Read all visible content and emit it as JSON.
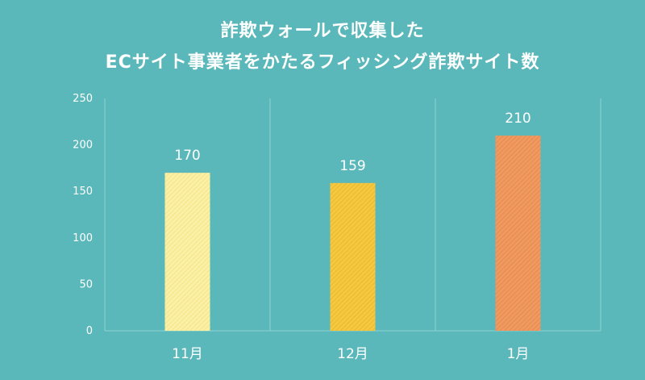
{
  "page": {
    "background": "#5bb8ba",
    "title_line1": "詐欺ウォールで収集した",
    "title_line2": "ECサイト事業者をかたるフィッシング詐欺サイト数"
  },
  "chart_data": {
    "type": "bar",
    "title": "詐欺ウォールで収集した ECサイト事業者をかたるフィッシング詐欺サイト数",
    "xlabel": "",
    "ylabel": "",
    "categories": [
      "11月",
      "12月",
      "1月"
    ],
    "values": [
      170,
      159,
      210
    ],
    "data_labels": [
      "170",
      "159",
      "210"
    ],
    "ylim": [
      0,
      250
    ],
    "yticks": [
      0,
      50,
      100,
      150,
      200,
      250
    ],
    "grid": "vertical lines between categories",
    "legend": "none",
    "bar_colors": [
      "#fbf0a8",
      "#f5c842",
      "#ee9a60"
    ],
    "bar_hatch_colors": [
      "#f2e27a",
      "#e8b424",
      "#e8844a"
    ]
  }
}
